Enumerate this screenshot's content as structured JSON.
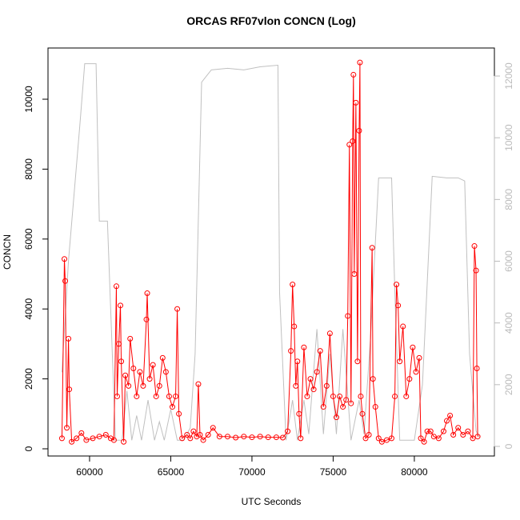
{
  "chart_data": {
    "type": "line",
    "title": "ORCAS RF07vlon CONCN (Log)",
    "x_label": "UTC Seconds",
    "y_label": "CONCN",
    "xlim": [
      57440,
      84930
    ],
    "xticks": [
      60000,
      65000,
      70000,
      75000,
      80000
    ],
    "ylim": [
      -206,
      11465
    ],
    "yticks": [
      0,
      2000,
      4000,
      6000,
      8000,
      10000
    ],
    "y2lim": [
      -311,
      12908
    ],
    "y2ticks": [
      0,
      2000,
      4000,
      6000,
      8000,
      10000,
      12000
    ],
    "series": [
      {
        "color": "#c0c0c0",
        "axis": "y2",
        "markers": false,
        "x": [
          58300,
          58700,
          59400,
          59700,
          60400,
          60600,
          61100,
          61400,
          61600,
          62000,
          62300,
          62600,
          62900,
          63200,
          63600,
          64000,
          64300,
          64600,
          65000,
          65400,
          65800,
          66200,
          66500,
          66900,
          67500,
          68500,
          69500,
          70500,
          71600,
          71700,
          72100,
          72500,
          72800,
          73200,
          73500,
          74000,
          74400,
          74800,
          75200,
          75600,
          76100,
          76600,
          76900,
          77300,
          77800,
          78600,
          78800,
          79100,
          80000,
          80500,
          81100,
          82000,
          82700,
          83100,
          83400,
          83800,
          84000
        ],
        "values": [
          2400,
          6000,
          10400,
          12400,
          12400,
          7300,
          7300,
          3000,
          200,
          200,
          1800,
          200,
          1000,
          200,
          1500,
          200,
          800,
          200,
          1200,
          200,
          200,
          600,
          3000,
          11800,
          12200,
          12250,
          12200,
          12300,
          12350,
          5000,
          200,
          1500,
          200,
          1500,
          400,
          3800,
          400,
          3000,
          400,
          3800,
          200,
          1500,
          400,
          3500,
          8700,
          8700,
          5000,
          200,
          200,
          2000,
          8750,
          8700,
          8700,
          8600,
          3000,
          500,
          300
        ]
      },
      {
        "color": "#ff0000",
        "markers": true,
        "x": [
          58300,
          58450,
          58500,
          58600,
          58700,
          58750,
          58900,
          59200,
          59500,
          59800,
          60200,
          60600,
          61000,
          61300,
          61500,
          61650,
          61700,
          61800,
          61900,
          61950,
          62100,
          62200,
          62400,
          62500,
          62700,
          62900,
          63100,
          63300,
          63500,
          63550,
          63700,
          63900,
          64100,
          64300,
          64500,
          64700,
          64900,
          65100,
          65300,
          65400,
          65500,
          65700,
          66000,
          66200,
          66400,
          66600,
          66700,
          66800,
          67000,
          67300,
          67600,
          68000,
          68500,
          69000,
          69500,
          70000,
          70500,
          71000,
          71500,
          71900,
          72200,
          72400,
          72500,
          72600,
          72700,
          72800,
          72900,
          73000,
          73200,
          73400,
          73600,
          73800,
          74000,
          74200,
          74400,
          74600,
          74800,
          75000,
          75200,
          75400,
          75600,
          75800,
          75900,
          76000,
          76100,
          76200,
          76250,
          76300,
          76400,
          76500,
          76600,
          76650,
          76700,
          76800,
          77000,
          77200,
          77400,
          77450,
          77600,
          77800,
          78000,
          78300,
          78600,
          78800,
          78900,
          79000,
          79100,
          79300,
          79500,
          79700,
          79900,
          80100,
          80300,
          80400,
          80600,
          80800,
          81000,
          81200,
          81500,
          81800,
          82000,
          82200,
          82400,
          82700,
          83000,
          83300,
          83600,
          83700,
          83800,
          83850,
          83900
        ],
        "values": [
          300,
          5430,
          4800,
          600,
          3150,
          1700,
          200,
          300,
          450,
          250,
          300,
          350,
          400,
          300,
          250,
          4650,
          1500,
          3000,
          4100,
          2500,
          200,
          2100,
          1800,
          3150,
          2300,
          1500,
          2200,
          1800,
          3700,
          4450,
          2000,
          2400,
          1500,
          1800,
          2600,
          2200,
          1500,
          1200,
          1500,
          4000,
          1000,
          300,
          400,
          300,
          500,
          350,
          1850,
          400,
          250,
          400,
          600,
          350,
          350,
          320,
          350,
          330,
          350,
          330,
          330,
          320,
          500,
          2800,
          4700,
          3500,
          1800,
          2500,
          1000,
          300,
          2900,
          1500,
          2000,
          1700,
          2200,
          2800,
          1200,
          1800,
          3300,
          1500,
          900,
          1500,
          1200,
          1400,
          3800,
          8700,
          1300,
          8800,
          10700,
          5000,
          9900,
          2500,
          9100,
          11050,
          1500,
          1000,
          300,
          400,
          5750,
          2000,
          1200,
          300,
          200,
          250,
          300,
          1500,
          4700,
          4100,
          2500,
          3500,
          1500,
          2000,
          2900,
          2200,
          2600,
          300,
          200,
          500,
          500,
          350,
          300,
          500,
          800,
          950,
          400,
          600,
          400,
          500,
          300,
          5800,
          5100,
          2300,
          350
        ]
      }
    ]
  }
}
